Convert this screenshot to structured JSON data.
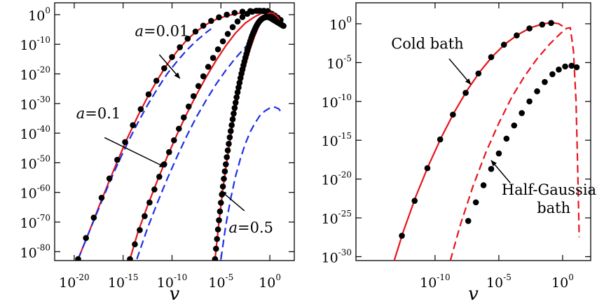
{
  "chart_data": [
    {
      "type": "line",
      "xlabel": "v",
      "ylabel": "",
      "x_scale": "log10",
      "y_scale": "log10",
      "xlim_log10": [
        -22,
        2.5
      ],
      "ylim_log10": [
        -83,
        4
      ],
      "x_ticks": [
        {
          "base": "10",
          "exp": "-20",
          "log10": -20
        },
        {
          "base": "10",
          "exp": "-15",
          "log10": -15
        },
        {
          "base": "10",
          "exp": "-10",
          "log10": -10
        },
        {
          "base": "10",
          "exp": "-5",
          "log10": -5
        },
        {
          "base": "10",
          "exp": "0",
          "log10": 0
        }
      ],
      "y_ticks": [
        {
          "base": "10",
          "exp": "0",
          "log10": 0
        },
        {
          "base": "10",
          "exp": "-10",
          "log10": -10
        },
        {
          "base": "10",
          "exp": "-20",
          "log10": -20
        },
        {
          "base": "10",
          "exp": "-30",
          "log10": -30
        },
        {
          "base": "10",
          "exp": "-40",
          "log10": -40
        },
        {
          "base": "10",
          "exp": "-50",
          "log10": -50
        },
        {
          "base": "10",
          "exp": "-60",
          "log10": -60
        },
        {
          "base": "10",
          "exp": "-70",
          "log10": -70
        },
        {
          "base": "10",
          "exp": "-80",
          "log10": -80
        }
      ],
      "colors": {
        "exact": "#e8141c",
        "approx": "#1f2ee8",
        "points": "#000000"
      },
      "annotations": [
        {
          "prefix": "a",
          "value": "=0.01",
          "text_log10": [
            -13.8,
            -7.2
          ],
          "arrow_from_log10": [
            -11.3,
            -13.5
          ],
          "arrow_to_log10": [
            -9.2,
            -21.5
          ]
        },
        {
          "prefix": "a",
          "value": "=0.1",
          "text_log10": [
            -19.8,
            -35.0
          ],
          "arrow_from_log10": [
            -16.9,
            -41.5
          ],
          "arrow_to_log10": [
            -10.7,
            -51.5
          ]
        },
        {
          "prefix": "a",
          "value": "=0.5",
          "text_log10": [
            -4.2,
            -73.5
          ],
          "arrow_from_log10": [
            -2.6,
            -66.2
          ],
          "arrow_to_log10": [
            -5.0,
            -59.5
          ]
        }
      ],
      "series": [
        {
          "kind": "exact",
          "style": "solid",
          "x": [
            -19.6,
            -18.5,
            -17.5,
            -16.5,
            -15.5,
            -14.5,
            -13.5,
            -12.5,
            -11.5,
            -10.5,
            -9.5,
            -8.5,
            -7.5,
            -6.5,
            -5.5,
            -4.5,
            -3.5,
            -2.5,
            -1.5,
            -0.5,
            0.0,
            0.5,
            0.8
          ],
          "y": [
            -82.5,
            -73.5,
            -65,
            -56.8,
            -48.8,
            -41.2,
            -34.2,
            -27.8,
            -22.0,
            -16.8,
            -12.4,
            -8.6,
            -5.6,
            -3.3,
            -1.6,
            -0.5,
            0.3,
            0.8,
            1.0,
            1.1,
            1.0,
            0.0,
            -1.5
          ]
        },
        {
          "kind": "approx",
          "style": "dashed",
          "x": [
            -19.6,
            -18.5,
            -17.5,
            -16.5,
            -15.5,
            -14.5,
            -13.5,
            -12.5,
            -11.5,
            -10.5,
            -9.5,
            -8.5,
            -7.5,
            -6.5,
            -6.0
          ],
          "y": [
            -82.5,
            -73.5,
            -65.5,
            -57.5,
            -50.0,
            -43.0,
            -36.5,
            -30.5,
            -25.0,
            -20.0,
            -15.8,
            -12.0,
            -8.8,
            -6.0,
            -4.8
          ]
        },
        {
          "kind": "points",
          "style": "markers",
          "x": [
            -19.6,
            -18.8,
            -18.0,
            -17.2,
            -16.4,
            -15.6,
            -14.8,
            -14.0,
            -13.2,
            -12.4,
            -11.6,
            -10.8,
            -10.0,
            -9.2,
            -8.4,
            -7.6,
            -6.8,
            -6.0,
            -5.2,
            -4.4,
            -3.6,
            -2.8,
            -2.0,
            -1.2,
            -0.6,
            -0.2
          ],
          "y": [
            -82.5,
            -75.4,
            -68.5,
            -61.8,
            -55.3,
            -49.0,
            -43.0,
            -37.3,
            -31.9,
            -26.9,
            -22.3,
            -18.1,
            -14.3,
            -11.0,
            -8.1,
            -5.7,
            -3.7,
            -2.1,
            -0.9,
            0.0,
            0.6,
            1.0,
            1.2,
            1.3,
            1.3,
            1.2
          ]
        },
        {
          "kind": "exact",
          "style": "solid",
          "x": [
            -14.3,
            -13.5,
            -12.5,
            -11.5,
            -10.5,
            -9.5,
            -8.5,
            -7.5,
            -6.5,
            -5.5,
            -4.5,
            -3.5,
            -2.5,
            -1.5,
            -0.8,
            -0.3,
            0.2,
            0.6,
            1.0
          ],
          "y": [
            -82.5,
            -73.5,
            -64.5,
            -56.0,
            -48.0,
            -40.5,
            -33.5,
            -27.0,
            -21.0,
            -15.5,
            -10.5,
            -6.2,
            -2.8,
            -0.6,
            0.5,
            0.7,
            0.5,
            -0.8,
            -3.0
          ]
        },
        {
          "kind": "approx",
          "style": "dashed",
          "x": [
            -13.6,
            -12.5,
            -11.5,
            -10.5,
            -9.5,
            -8.5,
            -7.5,
            -6.5,
            -5.5,
            -4.5,
            -3.5,
            -2.5,
            -2.0
          ],
          "y": [
            -82.5,
            -72.0,
            -63.5,
            -55.5,
            -48.0,
            -41.0,
            -34.5,
            -28.8,
            -23.5,
            -18.8,
            -14.6,
            -11.0,
            -9.5
          ]
        },
        {
          "kind": "points",
          "style": "markers",
          "x": [
            -14.3,
            -13.8,
            -13.3,
            -12.8,
            -12.3,
            -11.8,
            -11.3,
            -10.8,
            -10.3,
            -9.8,
            -9.3,
            -8.8,
            -8.3,
            -7.8,
            -7.3,
            -6.8,
            -6.3,
            -5.8,
            -5.3,
            -4.8,
            -4.3,
            -3.8,
            -3.3,
            -2.8,
            -2.3,
            -1.8,
            -1.4,
            -1.0,
            -0.7,
            -0.4,
            -0.1,
            0.2,
            0.5,
            0.8,
            1.1
          ],
          "y": [
            -82.5,
            -77.5,
            -72.7,
            -68.0,
            -63.4,
            -59.0,
            -54.7,
            -50.5,
            -46.4,
            -42.4,
            -38.5,
            -34.7,
            -31.0,
            -27.5,
            -24.1,
            -20.8,
            -17.6,
            -14.6,
            -11.7,
            -9.0,
            -6.5,
            -4.2,
            -2.3,
            -0.8,
            0.3,
            1.0,
            1.3,
            1.3,
            1.2,
            1.0,
            0.7,
            0.3,
            -0.3,
            -1.0,
            -1.8
          ]
        },
        {
          "kind": "exact",
          "style": "solid",
          "x": [
            -5.6,
            -5.2,
            -4.8,
            -4.4,
            -4.0,
            -3.6,
            -3.2,
            -2.8,
            -2.4,
            -2.0,
            -1.6,
            -1.2,
            -0.8,
            -0.4,
            0.0,
            0.4,
            0.8,
            1.2
          ],
          "y": [
            -82.5,
            -70.0,
            -59.0,
            -49.5,
            -41.0,
            -33.5,
            -27.0,
            -21.0,
            -16.0,
            -11.5,
            -7.6,
            -4.4,
            -1.9,
            -0.2,
            0.6,
            0.4,
            -0.8,
            -3.2
          ]
        },
        {
          "kind": "approx",
          "style": "dashed",
          "x": [
            -5.0,
            -4.5,
            -4.0,
            -3.5,
            -3.0,
            -2.5,
            -2.0,
            -1.5,
            -1.0,
            -0.5,
            0.0,
            0.5,
            0.9,
            1.2
          ],
          "y": [
            -82.5,
            -71.0,
            -62.0,
            -54.5,
            -48.5,
            -43.5,
            -39.5,
            -36.5,
            -34.0,
            -32.5,
            -31.5,
            -31.2,
            -31.8,
            -33.0
          ]
        },
        {
          "kind": "points",
          "style": "markers",
          "x": [
            -5.6,
            -5.5,
            -5.4,
            -5.3,
            -5.2,
            -5.1,
            -5.0,
            -4.9,
            -4.8,
            -4.7,
            -4.6,
            -4.5,
            -4.4,
            -4.3,
            -4.2,
            -4.1,
            -4.0,
            -3.9,
            -3.8,
            -3.7,
            -3.6,
            -3.5,
            -3.4,
            -3.3,
            -3.2,
            -3.1,
            -3.0,
            -2.9,
            -2.8,
            -2.7,
            -2.6,
            -2.5,
            -2.4,
            -2.3,
            -2.2,
            -2.1,
            -2.0,
            -1.9,
            -1.8,
            -1.7,
            -1.6,
            -1.5,
            -1.4,
            -1.3,
            -1.2,
            -1.1,
            -1.0,
            -0.9,
            -0.8,
            -0.7,
            -0.6,
            -0.5,
            -0.4,
            -0.3,
            -0.2,
            -0.1,
            0.0,
            0.1,
            0.2,
            0.3,
            0.4,
            0.5,
            0.6,
            0.7,
            0.8,
            0.9,
            1.0,
            1.1,
            1.2,
            1.3,
            1.4
          ],
          "y": [
            -82.5,
            -79.0,
            -75.7,
            -72.5,
            -69.4,
            -66.4,
            -63.5,
            -60.7,
            -58.0,
            -55.4,
            -52.9,
            -50.5,
            -48.1,
            -45.8,
            -43.6,
            -41.4,
            -39.3,
            -37.3,
            -35.3,
            -33.4,
            -31.5,
            -29.7,
            -27.9,
            -26.2,
            -24.6,
            -23.0,
            -21.4,
            -19.9,
            -18.5,
            -17.1,
            -15.8,
            -14.5,
            -13.3,
            -12.1,
            -11.0,
            -9.9,
            -8.9,
            -7.9,
            -7.0,
            -6.2,
            -5.4,
            -4.7,
            -4.0,
            -3.4,
            -2.9,
            -2.4,
            -2.0,
            -1.7,
            -1.4,
            -1.2,
            -1.0,
            -0.9,
            -0.8,
            -0.8,
            -0.8,
            -0.9,
            -1.0,
            -1.2,
            -1.4,
            -1.6,
            -1.8,
            -2.0,
            -2.2,
            -2.4,
            -2.6,
            -2.8,
            -3.0,
            -3.2,
            -3.4,
            -3.6,
            -3.8
          ]
        }
      ]
    },
    {
      "type": "line",
      "xlabel": "v",
      "ylabel": "",
      "x_scale": "log10",
      "y_scale": "log10",
      "xlim_log10": [
        -16.2,
        2.2
      ],
      "ylim_log10": [
        -30.5,
        2.7
      ],
      "x_ticks": [
        {
          "base": "10",
          "exp": "-10",
          "log10": -10
        },
        {
          "base": "10",
          "exp": "-5",
          "log10": -5
        },
        {
          "base": "10",
          "exp": "0",
          "log10": 0
        }
      ],
      "y_ticks": [
        {
          "base": "10",
          "exp": "0",
          "log10": 0
        },
        {
          "base": "10",
          "exp": "-5",
          "log10": -5
        },
        {
          "base": "10",
          "exp": "-10",
          "log10": -10
        },
        {
          "base": "10",
          "exp": "-15",
          "log10": -15
        },
        {
          "base": "10",
          "exp": "-20",
          "log10": -20
        },
        {
          "base": "10",
          "exp": "-25",
          "log10": -25
        },
        {
          "base": "10",
          "exp": "-30",
          "log10": -30
        }
      ],
      "colors": {
        "exact": "#e8141c",
        "points": "#000000"
      },
      "annotations": [
        {
          "lines": [
            "Cold bath"
          ],
          "text_log10": [
            -10.6,
            -3.2
          ],
          "arrow_from_log10": [
            -8.9,
            -4.5
          ],
          "arrow_to_log10": [
            -7.2,
            -7.8
          ]
        },
        {
          "lines": [
            "Half-Gaussian",
            "bath"
          ],
          "text_log10": [
            -0.7,
            -22.0
          ],
          "arrow_from_log10": [
            -4.1,
            -20.5
          ],
          "arrow_to_log10": [
            -5.6,
            -17.6
          ]
        }
      ],
      "series": [
        {
          "name": "Cold bath",
          "kind": "exact",
          "style": "solid",
          "x": [
            -13.2,
            -12.5,
            -11.5,
            -10.5,
            -9.5,
            -8.5,
            -7.5,
            -6.5,
            -5.5,
            -4.5,
            -3.5,
            -2.5,
            -1.5,
            -0.8,
            -0.3,
            0.0
          ],
          "y": [
            -30.5,
            -26.8,
            -22.2,
            -18.2,
            -14.6,
            -11.4,
            -8.6,
            -6.2,
            -4.2,
            -2.6,
            -1.4,
            -0.5,
            0.0,
            0.15,
            0.0,
            -0.3
          ]
        },
        {
          "name": "Cold bath",
          "kind": "points",
          "style": "markers",
          "x": [
            -12.6,
            -11.6,
            -10.6,
            -9.6,
            -8.6,
            -7.6,
            -6.6,
            -5.6,
            -4.6,
            -3.6,
            -2.6,
            -1.6,
            -0.9
          ],
          "y": [
            -27.3,
            -22.8,
            -18.6,
            -14.9,
            -11.7,
            -8.9,
            -6.4,
            -4.3,
            -2.7,
            -1.5,
            -0.6,
            -0.1,
            0.1
          ]
        },
        {
          "name": "Half-Gaussian bath",
          "kind": "exact",
          "style": "dashed",
          "x": [
            -8.8,
            -8.0,
            -7.0,
            -6.0,
            -5.0,
            -4.0,
            -3.0,
            -2.0,
            -1.0,
            -0.2,
            0.3,
            0.6,
            0.85,
            1.05,
            1.2,
            1.3
          ],
          "y": [
            -30.5,
            -25.8,
            -20.8,
            -16.5,
            -12.8,
            -9.5,
            -6.8,
            -4.5,
            -2.6,
            -1.3,
            -0.6,
            -0.5,
            -3.5,
            -10.0,
            -20.0,
            -27.5
          ]
        },
        {
          "name": "Half-Gaussian bath",
          "kind": "points",
          "style": "markers",
          "x": [
            -7.4,
            -6.8,
            -6.2,
            -5.6,
            -5.0,
            -4.4,
            -3.8,
            -3.2,
            -2.6,
            -2.0,
            -1.4,
            -0.8,
            -0.3,
            0.2,
            0.7,
            1.1
          ],
          "y": [
            -25.4,
            -23.0,
            -20.8,
            -18.7,
            -16.7,
            -14.8,
            -13.1,
            -11.5,
            -10.0,
            -8.7,
            -7.5,
            -6.5,
            -5.9,
            -5.5,
            -5.4,
            -5.6
          ]
        }
      ]
    }
  ]
}
